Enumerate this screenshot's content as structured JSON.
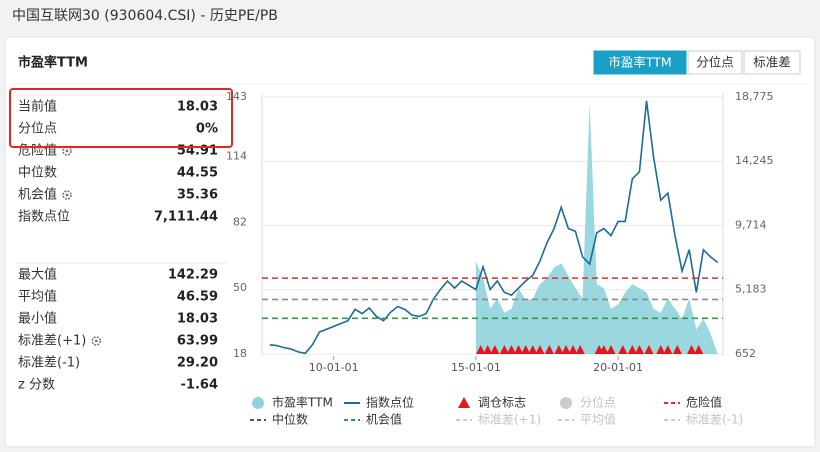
{
  "header": {
    "title": "中国互联网30 (930604.CSI) - 历史PE/PB"
  },
  "panel": {
    "title": "市盈率TTM",
    "tabs": [
      {
        "label": "市盈率TTM",
        "active": true
      },
      {
        "label": "分位点",
        "active": false
      },
      {
        "label": "标准差",
        "active": false
      }
    ]
  },
  "stats": {
    "groups": [
      [
        {
          "label": "当前值",
          "value": "18.03",
          "gear": false
        },
        {
          "label": "分位点",
          "value": "0%",
          "gear": false
        },
        {
          "label": "危险值",
          "value": "54.91",
          "gear": true
        },
        {
          "label": "中位数",
          "value": "44.55",
          "gear": false
        },
        {
          "label": "机会值",
          "value": "35.36",
          "gear": true
        },
        {
          "label": "指数点位",
          "value": "7,111.44",
          "gear": false
        }
      ],
      [
        {
          "label": "最大值",
          "value": "142.29",
          "gear": false
        },
        {
          "label": "平均值",
          "value": "46.59",
          "gear": false
        },
        {
          "label": "最小值",
          "value": "18.03",
          "gear": false
        },
        {
          "label": "标准差(+1)",
          "value": "63.99",
          "gear": true
        },
        {
          "label": "标准差(-1)",
          "value": "29.20",
          "gear": false
        },
        {
          "label": "z 分数",
          "value": "-1.64",
          "gear": false
        }
      ]
    ],
    "highlight_rows": 2
  },
  "chart_data": {
    "type": "area-line",
    "x": [
      "07-10-01",
      "08-01-01",
      "08-04-01",
      "08-07-01",
      "08-10-01",
      "09-01-01",
      "09-04-01",
      "09-07-01",
      "09-10-01",
      "10-01-01",
      "10-04-01",
      "10-07-01",
      "10-10-01",
      "11-01-01",
      "11-04-01",
      "11-07-01",
      "11-10-01",
      "12-01-01",
      "12-04-01",
      "12-07-01",
      "12-10-01",
      "13-01-01",
      "13-04-01",
      "13-07-01",
      "13-10-01",
      "14-01-01",
      "14-04-01",
      "14-07-01",
      "14-10-01",
      "15-01-01",
      "15-04-01",
      "15-07-01",
      "15-10-01",
      "16-01-01",
      "16-04-01",
      "16-07-01",
      "16-10-01",
      "17-01-01",
      "17-04-01",
      "17-07-01",
      "17-10-01",
      "18-01-01",
      "18-04-01",
      "18-07-01",
      "18-10-01",
      "19-01-01",
      "19-04-01",
      "19-07-01",
      "19-10-01",
      "20-01-01",
      "20-04-01",
      "20-07-01",
      "20-10-01",
      "21-01-01",
      "21-04-01",
      "21-07-01",
      "21-10-01",
      "22-01-01",
      "22-04-01",
      "22-07-01",
      "22-10-01",
      "23-01-01",
      "23-04-01",
      "23-07-01"
    ],
    "series": [
      {
        "name": "市盈率TTM",
        "color": "#8fd3dc",
        "kind": "area",
        "axis": "y",
        "values": [
          null,
          null,
          null,
          null,
          null,
          null,
          null,
          null,
          null,
          null,
          null,
          null,
          null,
          null,
          null,
          null,
          null,
          null,
          null,
          null,
          null,
          null,
          null,
          null,
          null,
          null,
          null,
          null,
          null,
          63,
          55,
          40,
          45,
          38,
          40,
          50,
          44,
          45,
          52,
          55,
          60,
          62,
          56,
          50,
          45,
          140,
          52,
          50,
          40,
          42,
          48,
          52,
          50,
          48,
          40,
          38,
          45,
          40,
          35,
          45,
          30,
          35,
          28,
          18.03
        ]
      },
      {
        "name": "指数点位",
        "color": "#1d6c98",
        "kind": "line",
        "axis": "y2",
        "values": [
          1300,
          1250,
          1100,
          1000,
          800,
          700,
          1300,
          2200,
          2400,
          2600,
          2800,
          3000,
          3800,
          3500,
          3900,
          3300,
          3000,
          3600,
          4000,
          3800,
          3400,
          3300,
          3500,
          4500,
          5200,
          5800,
          5300,
          5800,
          5500,
          5200,
          6800,
          5200,
          5800,
          5000,
          4800,
          5300,
          5800,
          6200,
          7200,
          8500,
          9500,
          11000,
          9500,
          9300,
          7500,
          7000,
          9200,
          9500,
          9000,
          10000,
          10000,
          13000,
          13500,
          18500,
          14500,
          11500,
          12000,
          9000,
          6500,
          8000,
          5000,
          8000,
          7500,
          7111.44
        ]
      }
    ],
    "ref_lines": [
      {
        "name": "危险值",
        "value": 54.91,
        "color": "#d6302a"
      },
      {
        "name": "中位数",
        "value": 44.55,
        "color": "#8c8c8c"
      },
      {
        "name": "机会值",
        "value": 35.36,
        "color": "#2f9a4a"
      }
    ],
    "markers": {
      "name": "调仓标志",
      "color": "#e8141a",
      "x": [
        "15-03-01",
        "15-06-01",
        "15-09-01",
        "16-01-01",
        "16-04-01",
        "16-07-01",
        "16-10-01",
        "17-01-01",
        "17-04-01",
        "17-08-01",
        "17-12-01",
        "18-03-01",
        "18-06-01",
        "18-09-01",
        "19-05-01",
        "19-07-01",
        "19-10-01",
        "20-03-01",
        "20-07-01",
        "20-10-01",
        "21-02-01",
        "21-07-01",
        "21-10-01",
        "22-02-01",
        "22-08-01",
        "22-11-01"
      ]
    },
    "legend": [
      {
        "name": "市盈率TTM",
        "symbol": "circle",
        "color": "#8fd3dc",
        "disabled": false
      },
      {
        "name": "指数点位",
        "symbol": "line",
        "color": "#1d6c98",
        "disabled": false
      },
      {
        "name": "调仓标志",
        "symbol": "triangle",
        "color": "#e8141a",
        "disabled": false
      },
      {
        "name": "分位点",
        "symbol": "circle",
        "color": "#cccccc",
        "disabled": true
      },
      {
        "name": "危险值",
        "symbol": "dash",
        "color": "#d6302a",
        "disabled": false
      },
      {
        "name": "中位数",
        "symbol": "dash",
        "color": "#555555",
        "disabled": false
      },
      {
        "name": "机会值",
        "symbol": "dash",
        "color": "#2f9a4a",
        "disabled": false
      },
      {
        "name": "标准差(+1)",
        "symbol": "dash",
        "color": "#cccccc",
        "disabled": true
      },
      {
        "name": "平均值",
        "symbol": "dash",
        "color": "#cccccc",
        "disabled": true
      },
      {
        "name": "标准差(-1)",
        "symbol": "dash",
        "color": "#cccccc",
        "disabled": true
      }
    ],
    "xlim": [
      "07-08-01",
      "23-08-01"
    ],
    "xticks": [
      "10-01-01",
      "15-01-01",
      "20-01-01"
    ],
    "ylim": [
      18,
      143
    ],
    "yticks": [
      18,
      50,
      82,
      114,
      143
    ],
    "y2lim": [
      652,
      18775
    ],
    "y2ticks": [
      652,
      {
        "value": 5183,
        "label": "5,183"
      },
      {
        "value": 9714,
        "label": "9,714"
      },
      {
        "value": 14245,
        "label": "14,245"
      },
      {
        "value": 18775,
        "label": "18,775"
      }
    ],
    "grid": true
  }
}
